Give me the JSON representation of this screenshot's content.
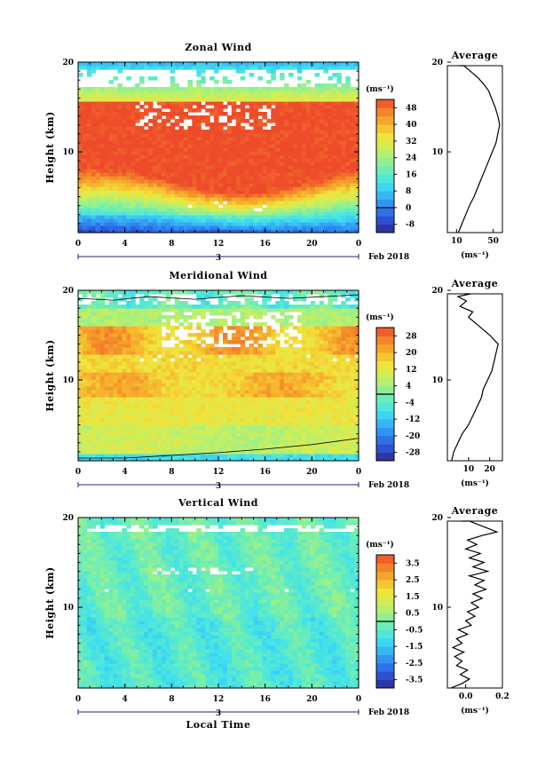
{
  "chart_data": [
    {
      "type": "heatmap",
      "title": "Zonal Wind",
      "xlabel": "",
      "ylabel": "Height (km)",
      "xlim": [
        0,
        24
      ],
      "ylim": [
        1,
        20
      ],
      "x_ticks": [
        "0",
        "4",
        "8",
        "12",
        "16",
        "20",
        "0"
      ],
      "y_ticks": [
        "10",
        "20"
      ],
      "date_label": "3",
      "month_label": "Feb 2018",
      "colorbar": {
        "unit_label": "(ms⁻¹)",
        "ticks": [
          "48",
          "40",
          "32",
          "24",
          "16",
          "8",
          "0",
          "-8"
        ],
        "range": [
          -12,
          52
        ]
      },
      "profile": {
        "title": "Average",
        "xlabel": "(ms⁻¹)",
        "x_ticks": [
          "10",
          "50"
        ],
        "y_ticks": [
          "10",
          "20"
        ],
        "xlim": [
          0,
          60
        ],
        "points": [
          [
            12,
            1.0
          ],
          [
            16,
            2.0
          ],
          [
            20,
            3.0
          ],
          [
            24,
            4.0
          ],
          [
            29,
            5.0
          ],
          [
            33,
            6.0
          ],
          [
            37,
            7.0
          ],
          [
            41,
            8.0
          ],
          [
            45,
            9.0
          ],
          [
            49,
            10.0
          ],
          [
            53,
            11.0
          ],
          [
            55,
            12.0
          ],
          [
            57,
            13.0
          ],
          [
            55,
            14.0
          ],
          [
            52,
            15.0
          ],
          [
            48,
            16.0
          ],
          [
            45,
            16.8
          ],
          [
            40,
            17.5
          ],
          [
            34,
            18.2
          ],
          [
            25,
            19.0
          ],
          [
            18,
            19.6
          ],
          [
            13,
            20.0
          ]
        ]
      }
    },
    {
      "type": "heatmap",
      "title": "Meridional Wind",
      "xlabel": "",
      "ylabel": "Height (km)",
      "xlim": [
        0,
        24
      ],
      "ylim": [
        1,
        20
      ],
      "x_ticks": [
        "0",
        "4",
        "8",
        "12",
        "16",
        "20",
        "0"
      ],
      "y_ticks": [
        "10",
        "20"
      ],
      "date_label": "3",
      "month_label": "Feb 2018",
      "colorbar": {
        "unit_label": "(ms⁻¹)",
        "ticks": [
          "28",
          "20",
          "12",
          "4",
          "-4",
          "-12",
          "-20",
          "-28"
        ],
        "range": [
          -32,
          32
        ]
      },
      "profile": {
        "title": "Average",
        "xlabel": "(ms⁻¹)",
        "x_ticks": [
          "10",
          "20"
        ],
        "y_ticks": [
          "10",
          "20"
        ],
        "xlim": [
          0,
          26
        ],
        "points": [
          [
            2,
            1.0
          ],
          [
            3,
            2.0
          ],
          [
            5,
            3.0
          ],
          [
            7,
            4.0
          ],
          [
            10,
            5.0
          ],
          [
            12,
            6.0
          ],
          [
            14,
            7.0
          ],
          [
            16,
            8.0
          ],
          [
            17,
            9.0
          ],
          [
            19,
            10.0
          ],
          [
            21,
            11.0
          ],
          [
            22,
            12.0
          ],
          [
            23,
            13.0
          ],
          [
            24,
            14.0
          ],
          [
            20,
            15.0
          ],
          [
            15,
            16.0
          ],
          [
            10,
            17.0
          ],
          [
            12,
            17.6
          ],
          [
            6,
            18.2
          ],
          [
            9,
            18.8
          ],
          [
            5,
            19.3
          ],
          [
            11,
            19.7
          ],
          [
            8,
            20.0
          ]
        ]
      }
    },
    {
      "type": "heatmap",
      "title": "Vertical Wind",
      "xlabel": "Local Time",
      "ylabel": "Height (km)",
      "xlim": [
        0,
        24
      ],
      "ylim": [
        1,
        20
      ],
      "x_ticks": [
        "0",
        "4",
        "8",
        "12",
        "16",
        "20",
        "0"
      ],
      "y_ticks": [
        "10",
        "20"
      ],
      "date_label": "3",
      "month_label": "Feb 2018",
      "colorbar": {
        "unit_label": "(ms⁻¹)",
        "ticks": [
          "3.5",
          "2.5",
          "1.5",
          "0.5",
          "-0.5",
          "-1.5",
          "-2.5",
          "-3.5"
        ],
        "range": [
          -4,
          4
        ]
      },
      "profile": {
        "title": "Average",
        "xlabel": "(ms⁻¹)",
        "x_ticks": [
          "0.0",
          "0.2"
        ],
        "y_ticks": [
          "10",
          "20"
        ],
        "xlim": [
          -0.1,
          0.2
        ],
        "points": [
          [
            -0.08,
            1.0
          ],
          [
            -0.02,
            1.5
          ],
          [
            0.02,
            2.0
          ],
          [
            -0.03,
            2.5
          ],
          [
            0.01,
            3.0
          ],
          [
            -0.05,
            3.5
          ],
          [
            -0.02,
            4.0
          ],
          [
            -0.06,
            4.5
          ],
          [
            -0.01,
            5.0
          ],
          [
            -0.07,
            5.5
          ],
          [
            -0.02,
            6.0
          ],
          [
            -0.05,
            6.5
          ],
          [
            0.01,
            7.0
          ],
          [
            -0.04,
            7.5
          ],
          [
            0.03,
            8.0
          ],
          [
            0.0,
            8.5
          ],
          [
            0.05,
            9.0
          ],
          [
            0.01,
            9.5
          ],
          [
            0.07,
            10.0
          ],
          [
            0.03,
            10.5
          ],
          [
            0.09,
            11.0
          ],
          [
            0.04,
            11.5
          ],
          [
            0.11,
            12.0
          ],
          [
            0.05,
            12.5
          ],
          [
            0.1,
            13.0
          ],
          [
            0.02,
            13.5
          ],
          [
            0.12,
            14.0
          ],
          [
            0.04,
            14.5
          ],
          [
            0.1,
            15.0
          ],
          [
            0.02,
            15.5
          ],
          [
            0.08,
            16.0
          ],
          [
            0.0,
            16.5
          ],
          [
            0.06,
            17.0
          ],
          [
            0.01,
            17.5
          ],
          [
            0.09,
            18.0
          ],
          [
            0.17,
            18.4
          ],
          [
            0.12,
            18.8
          ],
          [
            0.07,
            19.2
          ],
          [
            0.02,
            19.6
          ],
          [
            -0.02,
            20.0
          ]
        ]
      }
    }
  ]
}
